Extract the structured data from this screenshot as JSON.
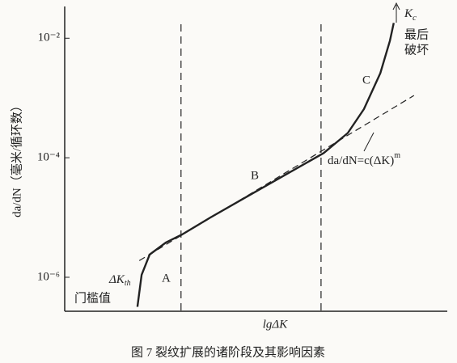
{
  "chart_data": {
    "type": "line",
    "y_label": "da/dN（毫米/循环数）",
    "x_label": "lgΔK",
    "caption": "图 7   裂纹扩展的诸阶段及其影响因素",
    "log_y": true,
    "xlim": [
      0,
      100
    ],
    "ylim": [
      2.7e-07,
      0.034
    ],
    "yticks": [
      {
        "value": 0.01,
        "label": "10⁻²"
      },
      {
        "value": 0.0001,
        "label": "10⁻⁴"
      },
      {
        "value": 1e-06,
        "label": "10⁻⁶"
      }
    ],
    "series": [
      {
        "name": "crack-growth",
        "color": "#222222",
        "style": "solid",
        "x": [
          19.0,
          20.1,
          22.2,
          26.4,
          30.7,
          38.1,
          50.7,
          67.7,
          74.0,
          78.2,
          82.5,
          85.0,
          86.0
        ],
        "values": [
          3.2e-07,
          1.1e-06,
          2.4e-06,
          3.8e-06,
          5.2e-06,
          1e-05,
          2.9e-05,
          0.00012,
          0.00026,
          0.00065,
          0.0026,
          0.0091,
          0.018
        ]
      },
      {
        "name": "paris-law",
        "color": "#222222",
        "style": "dashed",
        "x": [
          19.5,
          91.3
        ],
        "values": [
          1.9e-06,
          0.0011
        ]
      }
    ],
    "boundaries": [
      30.4,
      67.0
    ],
    "region_labels": [
      "A",
      "B",
      "C"
    ],
    "kc_symbol": [
      "K",
      "c"
    ],
    "final_failure": [
      "最后",
      "破坏"
    ],
    "threshold_symbol": [
      "ΔK",
      "th"
    ],
    "threshold_text": "门槛值",
    "equation": [
      "da/dN=c(ΔK)",
      "m"
    ]
  }
}
